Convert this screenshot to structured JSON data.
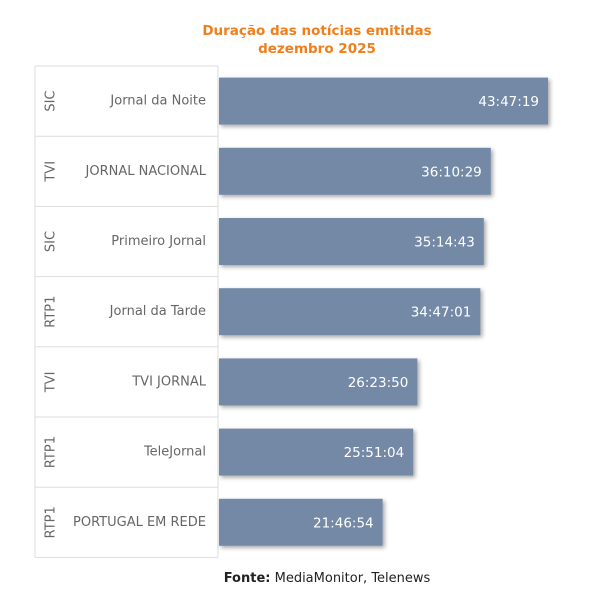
{
  "chart_data": {
    "type": "bar",
    "orientation": "horizontal",
    "title": "Duração das notícias emitidas",
    "subtitle": "dezembro 2025",
    "categories": [
      {
        "channel": "SIC",
        "program": "Jornal da Noite"
      },
      {
        "channel": "TVI",
        "program": "JORNAL NACIONAL"
      },
      {
        "channel": "SIC",
        "program": "Primeiro Jornal"
      },
      {
        "channel": "RTP1",
        "program": "Jornal da Tarde"
      },
      {
        "channel": "TVI",
        "program": "TVI JORNAL"
      },
      {
        "channel": "RTP1",
        "program": "TeleJornal"
      },
      {
        "channel": "RTP1",
        "program": "PORTUGAL EM REDE"
      }
    ],
    "series": [
      {
        "values": [
          157639,
          130229,
          126883,
          125221,
          95030,
          93064,
          78414
        ],
        "labels": [
          "43:47:19",
          "36:10:29",
          "35:14:43",
          "34:47:01",
          "26:23:50",
          "25:51:04",
          "21:46:54"
        ]
      }
    ],
    "value_unit": "seconds",
    "xlim": [
      0,
      157639
    ],
    "bar_color": "#7389a6",
    "label_color": "#ffffff",
    "grid": false,
    "legend": "none"
  },
  "source": {
    "prefix": "Fonte:",
    "text": " MediaMonitor, Telenews"
  },
  "colors": {
    "title": "#f07f1b",
    "bar": "#7389a6",
    "axis_text": "#666666",
    "divider": "#dddddd"
  }
}
